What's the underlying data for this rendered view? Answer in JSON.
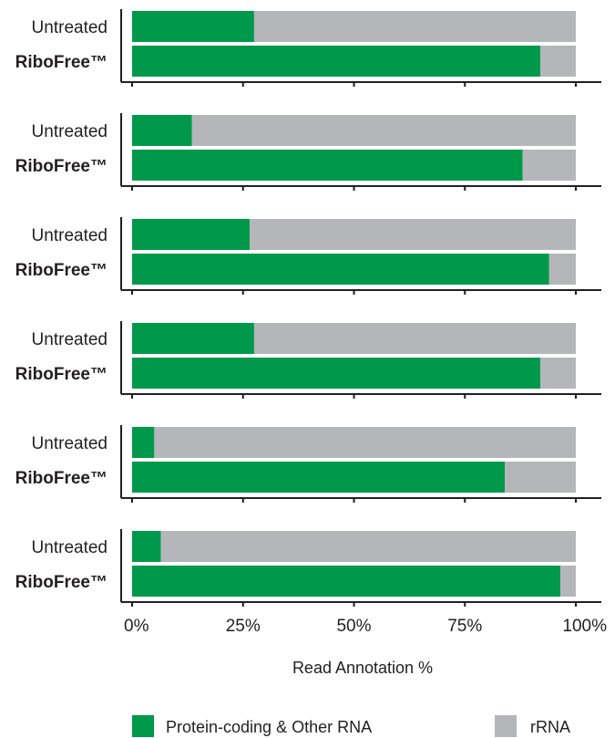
{
  "chart_data": {
    "type": "bar",
    "orientation": "horizontal",
    "stacked": true,
    "xlabel": "Read Annotation %",
    "xlim": [
      0,
      100
    ],
    "x_ticks": [
      "0%",
      "25%",
      "50%",
      "75%",
      "100%"
    ],
    "legend": {
      "placement": "bottom",
      "entries": [
        "Protein-coding & Other RNA",
        "rRNA"
      ]
    },
    "colors": {
      "Protein-coding & Other RNA": "#00994c",
      "rRNA": "#b5b6b9"
    },
    "groups": [
      {
        "bars": [
          {
            "label": "Untreated",
            "bold": false,
            "protein_coding_other_rna": 27.5,
            "rrna": 72.5
          },
          {
            "label": "RiboFree™",
            "bold": true,
            "protein_coding_other_rna": 92.0,
            "rrna": 8.0
          }
        ]
      },
      {
        "bars": [
          {
            "label": "Untreated",
            "bold": false,
            "protein_coding_other_rna": 13.5,
            "rrna": 86.5
          },
          {
            "label": "RiboFree™",
            "bold": true,
            "protein_coding_other_rna": 88.0,
            "rrna": 12.0
          }
        ]
      },
      {
        "bars": [
          {
            "label": "Untreated",
            "bold": false,
            "protein_coding_other_rna": 26.5,
            "rrna": 73.5
          },
          {
            "label": "RiboFree™",
            "bold": true,
            "protein_coding_other_rna": 94.0,
            "rrna": 6.0
          }
        ]
      },
      {
        "bars": [
          {
            "label": "Untreated",
            "bold": false,
            "protein_coding_other_rna": 27.5,
            "rrna": 72.5
          },
          {
            "label": "RiboFree™",
            "bold": true,
            "protein_coding_other_rna": 92.0,
            "rrna": 8.0
          }
        ]
      },
      {
        "bars": [
          {
            "label": "Untreated",
            "bold": false,
            "protein_coding_other_rna": 5.0,
            "rrna": 95.0
          },
          {
            "label": "RiboFree™",
            "bold": true,
            "protein_coding_other_rna": 84.0,
            "rrna": 16.0
          }
        ]
      },
      {
        "bars": [
          {
            "label": "Untreated",
            "bold": false,
            "protein_coding_other_rna": 6.5,
            "rrna": 93.5
          },
          {
            "label": "RiboFree™",
            "bold": true,
            "protein_coding_other_rna": 96.5,
            "rrna": 3.5
          }
        ]
      }
    ]
  }
}
